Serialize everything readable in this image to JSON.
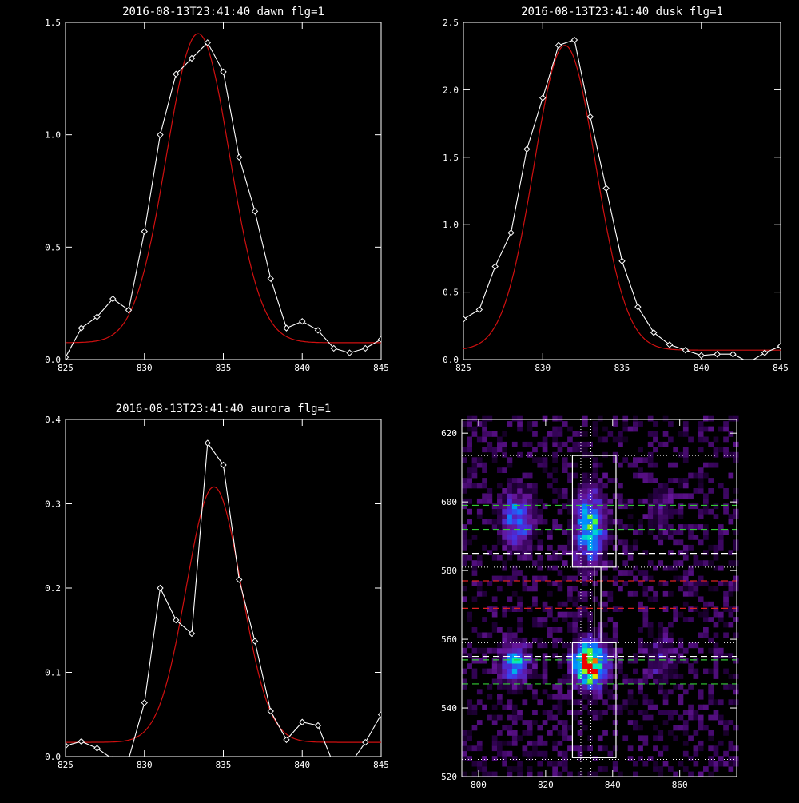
{
  "colors": {
    "background": "#000000",
    "axis": "#ffffff",
    "observed_line": "#ffffff",
    "fit_line": "#d01010",
    "peak_line_green": "#33cc33",
    "peak_line_red": "#dd2222",
    "background_line_white": "#ffffff",
    "heatmap_colormap": "rainbow (black-purple-blue-green-yellow-red)"
  },
  "chart_data": [
    {
      "id": "dawn",
      "type": "line",
      "title": "2016-08-13T23:41:40 dawn flg=1",
      "xlim": [
        825,
        845
      ],
      "ylim": [
        0,
        1.5
      ],
      "xticks": [
        825,
        830,
        835,
        840,
        845
      ],
      "yticks": [
        0.0,
        0.5,
        1.0,
        1.5
      ],
      "xtick_labels": [
        "825",
        "830",
        "835",
        "840",
        "845"
      ],
      "ytick_labels": [
        "0.0",
        "0.5",
        "1.0",
        "1.5"
      ],
      "series": [
        {
          "role": "observed",
          "marker": "diamond",
          "x": [
            825,
            826,
            827,
            828,
            829,
            830,
            831,
            832,
            833,
            834,
            835,
            836,
            837,
            838,
            839,
            840,
            841,
            842,
            843,
            844,
            845
          ],
          "y": [
            0.01,
            0.14,
            0.19,
            0.27,
            0.22,
            0.57,
            1.0,
            1.27,
            1.34,
            1.41,
            1.28,
            0.9,
            0.66,
            0.36,
            0.14,
            0.17,
            0.13,
            0.05,
            0.03,
            0.05,
            0.09
          ]
        },
        {
          "role": "gaussian-fit",
          "baseline": 0.075,
          "amplitude": 1.375,
          "center": 833.4,
          "sigma": 2.0
        }
      ]
    },
    {
      "id": "dusk",
      "type": "line",
      "title": "2016-08-13T23:41:40 dusk flg=1",
      "xlim": [
        825,
        845
      ],
      "ylim": [
        0,
        2.5
      ],
      "xticks": [
        825,
        830,
        835,
        840,
        845
      ],
      "yticks": [
        0.0,
        0.5,
        1.0,
        1.5,
        2.0,
        2.5
      ],
      "xtick_labels": [
        "825",
        "830",
        "835",
        "840",
        "845"
      ],
      "ytick_labels": [
        "0.0",
        "0.5",
        "1.0",
        "1.5",
        "2.0",
        "2.5"
      ],
      "series": [
        {
          "role": "observed",
          "marker": "diamond",
          "x": [
            825,
            826,
            827,
            828,
            829,
            830,
            831,
            832,
            833,
            834,
            835,
            836,
            837,
            838,
            839,
            840,
            841,
            842,
            843,
            844,
            845
          ],
          "y": [
            0.3,
            0.37,
            0.69,
            0.94,
            1.56,
            1.94,
            2.33,
            2.37,
            1.8,
            1.27,
            0.73,
            0.39,
            0.2,
            0.11,
            0.07,
            0.03,
            0.04,
            0.04,
            -0.02,
            0.05,
            0.1
          ]
        },
        {
          "role": "gaussian-fit",
          "baseline": 0.07,
          "amplitude": 2.26,
          "center": 831.4,
          "sigma": 1.95
        }
      ]
    },
    {
      "id": "aurora",
      "type": "line",
      "title": "2016-08-13T23:41:40 aurora flg=1",
      "xlim": [
        825,
        845
      ],
      "ylim": [
        0,
        0.4
      ],
      "xticks": [
        825,
        830,
        835,
        840,
        845
      ],
      "yticks": [
        0.0,
        0.1,
        0.2,
        0.3,
        0.4
      ],
      "xtick_labels": [
        "825",
        "830",
        "835",
        "840",
        "845"
      ],
      "ytick_labels": [
        "0.0",
        "0.1",
        "0.2",
        "0.3",
        "0.4"
      ],
      "series": [
        {
          "role": "observed",
          "marker": "diamond",
          "x": [
            825,
            826,
            827,
            828,
            829,
            830,
            831,
            832,
            833,
            834,
            835,
            836,
            837,
            838,
            839,
            840,
            841,
            842,
            843,
            844,
            845
          ],
          "y": [
            0.013,
            0.018,
            0.01,
            -0.003,
            -0.003,
            0.064,
            0.2,
            0.162,
            0.146,
            0.372,
            0.346,
            0.21,
            0.137,
            0.054,
            0.02,
            0.041,
            0.037,
            -0.01,
            -0.01,
            0.017,
            0.05
          ]
        },
        {
          "role": "gaussian-fit",
          "baseline": 0.017,
          "amplitude": 0.303,
          "center": 834.4,
          "sigma": 1.75
        }
      ]
    },
    {
      "id": "image",
      "type": "heatmap",
      "title": "",
      "xlim": [
        795,
        877
      ],
      "ylim": [
        520,
        624
      ],
      "xticks": [
        800,
        820,
        840,
        860
      ],
      "yticks": [
        520,
        540,
        560,
        580,
        600,
        620
      ],
      "xtick_labels": [
        "800",
        "820",
        "840",
        "860"
      ],
      "ytick_labels": [
        "520",
        "540",
        "560",
        "580",
        "600",
        "620"
      ],
      "blobs": [
        {
          "x": 832.5,
          "y": 592,
          "sx": 2.8,
          "sy": 6.5,
          "value": 0.55
        },
        {
          "x": 832.5,
          "y": 552,
          "sx": 3.0,
          "sy": 4.0,
          "value": 1.0
        },
        {
          "x": 811,
          "y": 594,
          "sx": 3.0,
          "sy": 5.0,
          "value": 0.38
        },
        {
          "x": 810,
          "y": 552,
          "sx": 2.6,
          "sy": 4.0,
          "value": 0.42
        },
        {
          "x": 853.5,
          "y": 554,
          "sx": 3.0,
          "sy": 5.0,
          "value": 0.12
        },
        {
          "x": 853.5,
          "y": 596,
          "sx": 3.0,
          "sy": 5.0,
          "value": 0.09
        }
      ],
      "boxes": [
        {
          "x0": 828,
          "x1": 841,
          "y0": 581,
          "y1": 613.5
        },
        {
          "x0": 828,
          "x1": 841,
          "y0": 525.5,
          "y1": 559
        }
      ],
      "connector": {
        "x0": 834.5,
        "x1": 836.5,
        "y0": 559,
        "y1": 581
      },
      "vertical_dotted_lines": [
        830.5,
        833.5
      ],
      "white_dotted_lines": [
        525,
        559,
        581,
        613.5
      ],
      "green_dashed_lines": [
        599,
        592,
        554,
        547
      ],
      "white_dashed_lines": [
        585,
        555
      ],
      "red_dashed_lines": [
        577,
        569
      ]
    }
  ]
}
